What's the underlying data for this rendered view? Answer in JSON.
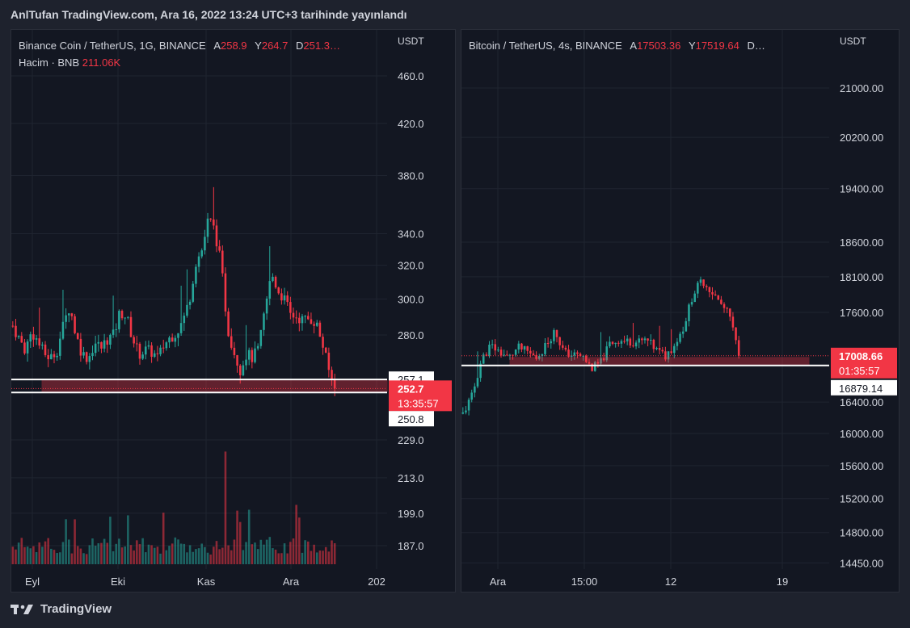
{
  "header": {
    "title": "AnlTufan TradingView.com, Ara 16, 2022 13:24 UTC+3 tarihinde yayınlandı"
  },
  "footer": {
    "brand": "TradingView",
    "logo_icon": "tradingview-logo-icon"
  },
  "colors": {
    "bg": "#131722",
    "up": "#26a69a",
    "down": "#f23645",
    "grid": "#1f2430",
    "text": "#d1d4dc"
  },
  "left_chart": {
    "symbol": "Binance Coin / TetherUS, 1G, BINANCE",
    "open_key": "A",
    "open": "258.9",
    "high_key": "Y",
    "high": "264.7",
    "low_key": "D",
    "low": "251.3…",
    "volume_label": "Hacim · BNB",
    "volume_value": "211.06K",
    "axis_unit": "USDT",
    "price_label": "252.7",
    "countdown": "13:35:57",
    "line_upper_label": "257.1",
    "line_lower_label": "250.8"
  },
  "right_chart": {
    "symbol": "Bitcoin / TetherUS, 4s, BINANCE",
    "open_key": "A",
    "open": "17503.36",
    "high_key": "Y",
    "high": "17519.64",
    "low_key": "D…",
    "low": "",
    "axis_unit": "USDT",
    "price_label": "17008.66",
    "countdown": "01:35:57",
    "line_label": "16879.14"
  },
  "chart_data": [
    {
      "type": "candlestick",
      "title": "Binance Coin / TetherUS, 1G, BINANCE",
      "scale": "log",
      "y_ticks": [
        "460.0",
        "420.0",
        "380.0",
        "340.0",
        "320.0",
        "300.0",
        "280.0",
        "229.0",
        "213.0",
        "199.0",
        "187.0"
      ],
      "x_ticks": [
        "Eyl",
        "Eki",
        "Kas",
        "Ara",
        "202"
      ],
      "price_path": [
        285,
        278,
        272,
        282,
        276,
        270,
        268,
        272,
        285,
        296,
        280,
        270,
        268,
        276,
        273,
        278,
        280,
        293,
        290,
        278,
        270,
        272,
        271,
        268,
        275,
        279,
        282,
        288,
        300,
        322,
        330,
        350,
        342,
        320,
        284,
        272,
        262,
        270,
        268,
        273,
        295,
        315,
        305,
        300,
        291,
        290,
        288,
        289,
        287,
        276,
        262,
        252.7
      ],
      "last_price": 252.7,
      "horizontal_lines": [
        257.1,
        250.8
      ]
    },
    {
      "type": "candlestick",
      "title": "Bitcoin / TetherUS, 4s, BINANCE",
      "scale": "log",
      "y_ticks": [
        "21000.00",
        "20200.00",
        "19400.00",
        "18600.00",
        "18100.00",
        "17600.00",
        "16400.00",
        "16000.00",
        "15600.00",
        "15200.00",
        "14800.00",
        "14450.00"
      ],
      "x_ticks": [
        "Ara",
        "15:00",
        "12",
        "19"
      ],
      "price_path": [
        16250,
        16480,
        16950,
        17150,
        17060,
        16980,
        17120,
        17060,
        16980,
        17150,
        17350,
        17050,
        17020,
        17000,
        16840,
        16920,
        17180,
        17220,
        17200,
        17190,
        17220,
        17090,
        17000,
        17160,
        17400,
        17850,
        18050,
        17900,
        17720,
        17550,
        17008.66
      ],
      "last_price": 17008.66,
      "horizontal_lines": [
        16879.14
      ]
    }
  ]
}
